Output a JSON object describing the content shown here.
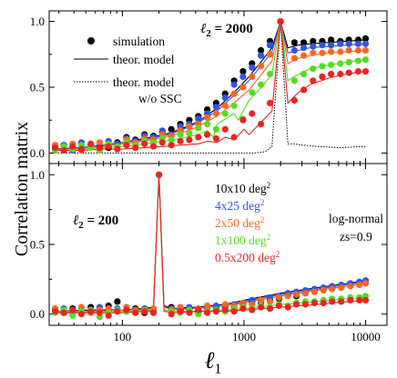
{
  "chart_data": {
    "type": "scatter",
    "x_scale": "log",
    "xlim": [
      25,
      15000
    ],
    "ylabel": "Correlation matrix",
    "xlabel_symbol": "ℓ",
    "xlabel_sub": "1",
    "x_ticks": [
      100,
      1000,
      10000
    ],
    "x_tick_labels": [
      "100",
      "1000",
      "10000"
    ],
    "y_ticks": [
      0.0,
      0.5,
      1.0
    ],
    "y_tick_labels": [
      "0.0",
      "0.5",
      "1.0"
    ],
    "colors": [
      "#000000",
      "#3355dd",
      "#ff6622",
      "#55dd22",
      "#ee2222"
    ],
    "top_legend": {
      "simulation": "simulation",
      "theory": "theor. model",
      "nossc_line1": "theor. model",
      "nossc_line2": "w/o SSC"
    },
    "bottom_legend": {
      "shapes": [
        "10x10 deg",
        "4x25 deg",
        "2x50 deg",
        "1x100 deg",
        "0.5x200 deg"
      ],
      "superscript": "2",
      "note_1": "log-normal",
      "note_2": "zs=0.9"
    },
    "panels": [
      {
        "label_symbol": "ℓ",
        "label_sub": "2",
        "label_value": " = 2000",
        "ylim": [
          -0.08,
          1.08
        ],
        "x": [
          28,
          33,
          39,
          46,
          55,
          65,
          77,
          91,
          108,
          128,
          152,
          180,
          213,
          253,
          300,
          355,
          421,
          499,
          591,
          700,
          830,
          983,
          1165,
          1380,
          1635,
          2000,
          2600,
          3100,
          3700,
          4400,
          5200,
          6200,
          7300,
          8700,
          10000
        ],
        "series": [
          {
            "values": [
              0.05,
              0.02,
              0.04,
              0.03,
              0.06,
              0.05,
              0.04,
              0.08,
              0.12,
              0.1,
              0.14,
              0.13,
              0.16,
              0.18,
              0.22,
              0.25,
              0.28,
              0.33,
              0.38,
              0.45,
              0.55,
              0.62,
              0.68,
              0.78,
              0.85,
              1.0,
              0.84,
              0.84,
              0.85,
              0.85,
              0.86,
              0.85,
              0.86,
              0.86,
              0.87
            ]
          },
          {
            "values": [
              0.03,
              0.06,
              0.02,
              0.08,
              0.05,
              0.04,
              0.09,
              0.07,
              0.11,
              0.09,
              0.13,
              0.12,
              0.17,
              0.14,
              0.2,
              0.22,
              0.26,
              0.3,
              0.35,
              0.42,
              0.52,
              0.58,
              0.65,
              0.74,
              0.82,
              1.0,
              0.78,
              0.8,
              0.81,
              0.82,
              0.82,
              0.83,
              0.83,
              0.83,
              0.83
            ]
          },
          {
            "values": [
              0.06,
              0.03,
              0.07,
              0.02,
              0.05,
              0.08,
              0.06,
              0.05,
              0.1,
              0.08,
              0.11,
              0.1,
              0.14,
              0.13,
              0.17,
              0.2,
              0.22,
              0.27,
              0.3,
              0.36,
              0.45,
              0.5,
              0.58,
              0.66,
              0.75,
              1.0,
              0.72,
              0.74,
              0.76,
              0.76,
              0.77,
              0.77,
              0.78,
              0.78,
              0.78
            ]
          },
          {
            "values": [
              0.02,
              0.05,
              0.03,
              0.06,
              0.04,
              0.02,
              0.07,
              0.05,
              0.08,
              0.06,
              0.09,
              0.08,
              0.11,
              0.1,
              0.14,
              0.15,
              0.19,
              0.22,
              0.18,
              0.3,
              0.36,
              0.26,
              0.46,
              0.52,
              0.6,
              1.0,
              0.55,
              0.6,
              0.64,
              0.66,
              0.67,
              0.68,
              0.69,
              0.7,
              0.71
            ]
          },
          {
            "values": [
              0.04,
              0.02,
              0.05,
              0.03,
              0.07,
              0.04,
              0.05,
              0.03,
              0.06,
              0.04,
              0.07,
              0.05,
              0.08,
              0.06,
              0.09,
              0.1,
              0.12,
              0.14,
              0.11,
              0.18,
              0.12,
              0.25,
              0.3,
              0.22,
              0.38,
              1.0,
              0.4,
              0.48,
              0.55,
              0.58,
              0.6,
              0.6,
              0.61,
              0.62,
              0.62
            ]
          }
        ],
        "theory": [
          {
            "x": [
              28,
              45,
              70,
              100,
              150,
              220,
              300,
              420,
              600,
              830,
              1100,
              1400,
              1700,
              2000,
              2300,
              2800,
              3500,
              5000,
              7000,
              10000
            ],
            "values": [
              0.03,
              0.04,
              0.06,
              0.08,
              0.11,
              0.14,
              0.18,
              0.24,
              0.34,
              0.46,
              0.58,
              0.7,
              0.8,
              1.0,
              0.8,
              0.82,
              0.83,
              0.84,
              0.85,
              0.86
            ]
          },
          {
            "x": [
              28,
              45,
              70,
              100,
              150,
              220,
              300,
              420,
              600,
              830,
              1100,
              1400,
              1700,
              2000,
              2300,
              2800,
              3500,
              5000,
              7000,
              10000
            ],
            "values": [
              0.03,
              0.04,
              0.06,
              0.08,
              0.1,
              0.13,
              0.17,
              0.23,
              0.32,
              0.44,
              0.55,
              0.67,
              0.77,
              1.0,
              0.76,
              0.78,
              0.8,
              0.81,
              0.82,
              0.83
            ]
          },
          {
            "x": [
              28,
              45,
              70,
              100,
              150,
              220,
              300,
              420,
              600,
              830,
              1100,
              1400,
              1700,
              2000,
              2300,
              2800,
              3500,
              5000,
              7000,
              10000
            ],
            "values": [
              0.02,
              0.03,
              0.05,
              0.07,
              0.09,
              0.12,
              0.15,
              0.2,
              0.28,
              0.38,
              0.48,
              0.6,
              0.7,
              1.0,
              0.68,
              0.72,
              0.74,
              0.76,
              0.77,
              0.78
            ]
          },
          {
            "x": [
              28,
              45,
              70,
              100,
              150,
              220,
              300,
              420,
              500,
              560,
              600,
              830,
              900,
              1100,
              1400,
              1700,
              2000,
              2300,
              2800,
              3500,
              5000,
              7000,
              10000
            ],
            "values": [
              0.02,
              0.03,
              0.04,
              0.05,
              0.07,
              0.09,
              0.11,
              0.14,
              0.17,
              0.12,
              0.22,
              0.3,
              0.25,
              0.4,
              0.5,
              0.6,
              1.0,
              0.55,
              0.6,
              0.64,
              0.67,
              0.69,
              0.71
            ]
          },
          {
            "x": [
              28,
              45,
              70,
              100,
              150,
              220,
              300,
              420,
              500,
              600,
              700,
              830,
              1000,
              1100,
              1400,
              1700,
              2000,
              2300,
              2800,
              3500,
              5000,
              7000,
              10000
            ],
            "values": [
              0.02,
              0.02,
              0.03,
              0.03,
              0.04,
              0.05,
              0.06,
              0.07,
              0.09,
              0.08,
              0.12,
              0.1,
              0.18,
              0.14,
              0.24,
              0.32,
              1.0,
              0.38,
              0.46,
              0.52,
              0.57,
              0.6,
              0.62
            ]
          }
        ],
        "nossc": {
          "x": [
            28,
            100,
            300,
            700,
            1200,
            1500,
            1700,
            2000,
            2300,
            2600,
            3000,
            4000,
            6000,
            10000
          ],
          "values": [
            0.0,
            0.0,
            0.0,
            0.0,
            0.0,
            0.01,
            0.05,
            1.0,
            0.07,
            0.07,
            0.06,
            0.05,
            0.04,
            0.05
          ]
        }
      },
      {
        "label_symbol": "ℓ",
        "label_sub": "2",
        "label_value": " = 200",
        "ylim": [
          -0.08,
          1.08
        ],
        "x": [
          28,
          33,
          39,
          46,
          55,
          65,
          77,
          91,
          108,
          128,
          152,
          180,
          200,
          253,
          300,
          355,
          421,
          499,
          591,
          700,
          830,
          983,
          1165,
          1380,
          1635,
          1940,
          2300,
          2700,
          3200,
          3800,
          4500,
          5300,
          6300,
          7500,
          8900,
          10000
        ],
        "series": [
          {
            "values": [
              0.03,
              0.01,
              0.04,
              0.02,
              0.05,
              0.03,
              0.06,
              0.09,
              0.02,
              0.04,
              0.01,
              0.03,
              1.0,
              0.05,
              0.03,
              0.04,
              0.02,
              0.05,
              0.04,
              0.06,
              0.05,
              0.07,
              0.09,
              0.08,
              0.1,
              0.11,
              0.14,
              0.13,
              0.15,
              0.17,
              0.18,
              0.19,
              0.2,
              0.22,
              0.23,
              0.24
            ]
          },
          {
            "values": [
              0.02,
              0.04,
              0.01,
              0.03,
              0.02,
              0.05,
              0.02,
              0.04,
              0.03,
              0.02,
              0.04,
              0.02,
              1.0,
              0.04,
              0.02,
              0.05,
              0.03,
              0.04,
              0.06,
              0.05,
              0.07,
              0.08,
              0.1,
              0.09,
              0.12,
              0.13,
              0.15,
              0.16,
              0.17,
              0.18,
              0.19,
              0.2,
              0.21,
              0.22,
              0.23,
              0.24
            ]
          },
          {
            "values": [
              0.04,
              0.02,
              0.03,
              0.05,
              0.01,
              0.03,
              0.04,
              0.02,
              0.05,
              0.03,
              0.02,
              0.04,
              1.0,
              0.03,
              0.05,
              0.02,
              0.04,
              0.06,
              0.03,
              0.07,
              0.06,
              0.08,
              0.07,
              0.1,
              0.09,
              0.12,
              0.13,
              0.14,
              0.15,
              0.16,
              0.17,
              0.18,
              0.19,
              0.2,
              0.21,
              0.22
            ]
          },
          {
            "values": [
              0.01,
              0.03,
              -0.01,
              0.02,
              0.03,
              -0.02,
              0.01,
              0.03,
              0.02,
              0.01,
              0.03,
              0.01,
              1.0,
              0.02,
              0.01,
              0.03,
              0.0,
              0.02,
              0.03,
              0.02,
              0.04,
              0.05,
              0.04,
              0.06,
              0.05,
              0.07,
              0.06,
              0.08,
              0.09,
              0.09,
              0.1,
              0.11,
              0.11,
              0.12,
              0.12,
              0.13
            ]
          },
          {
            "values": [
              0.02,
              0.01,
              0.03,
              0.0,
              0.02,
              0.01,
              -0.01,
              0.02,
              0.03,
              0.01,
              0.02,
              0.01,
              1.0,
              0.0,
              0.02,
              0.01,
              0.03,
              0.01,
              0.02,
              0.03,
              0.02,
              0.04,
              0.03,
              0.05,
              0.04,
              0.06,
              0.05,
              0.07,
              0.07,
              0.08,
              0.08,
              0.09,
              0.09,
              0.1,
              0.1,
              0.1
            ]
          }
        ],
        "theory": [
          {
            "x": [
              28,
              60,
              100,
              150,
              180,
              200,
              220,
              260,
              400,
              700,
              1000,
              2000,
              4000,
              7000,
              10000
            ],
            "values": [
              0.02,
              0.03,
              0.03,
              0.04,
              0.05,
              1.0,
              0.06,
              0.04,
              0.05,
              0.07,
              0.1,
              0.15,
              0.19,
              0.22,
              0.24
            ]
          },
          {
            "x": [
              28,
              60,
              100,
              150,
              180,
              200,
              220,
              260,
              400,
              700,
              1000,
              2000,
              4000,
              7000,
              10000
            ],
            "values": [
              0.02,
              0.02,
              0.03,
              0.03,
              0.04,
              1.0,
              0.05,
              0.04,
              0.04,
              0.06,
              0.09,
              0.14,
              0.18,
              0.21,
              0.23
            ]
          },
          {
            "x": [
              28,
              60,
              100,
              150,
              180,
              200,
              220,
              260,
              400,
              700,
              1000,
              2000,
              4000,
              7000,
              10000
            ],
            "values": [
              0.02,
              0.02,
              0.03,
              0.03,
              0.04,
              1.0,
              0.05,
              0.03,
              0.04,
              0.06,
              0.08,
              0.13,
              0.17,
              0.2,
              0.22
            ]
          },
          {
            "x": [
              28,
              60,
              100,
              150,
              180,
              200,
              220,
              260,
              400,
              700,
              1000,
              2000,
              4000,
              7000,
              10000
            ],
            "values": [
              0.01,
              0.01,
              0.02,
              0.02,
              0.03,
              1.0,
              0.03,
              0.02,
              0.02,
              0.03,
              0.04,
              0.07,
              0.09,
              0.11,
              0.12
            ]
          },
          {
            "x": [
              28,
              60,
              100,
              150,
              180,
              200,
              220,
              260,
              400,
              700,
              1000,
              2000,
              4000,
              7000,
              10000
            ],
            "values": [
              0.01,
              0.01,
              0.01,
              0.02,
              0.02,
              1.0,
              0.02,
              0.01,
              0.02,
              0.02,
              0.03,
              0.05,
              0.07,
              0.09,
              0.1
            ]
          }
        ]
      }
    ]
  }
}
